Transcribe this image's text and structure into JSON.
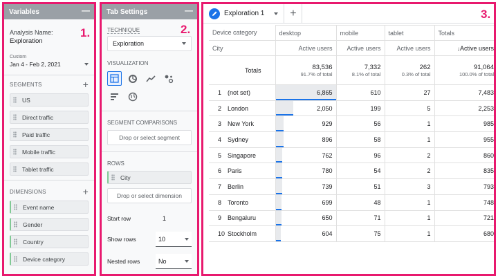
{
  "variables": {
    "title": "Variables",
    "analysis_name_label": "Analysis Name:",
    "analysis_name": "Exploration",
    "date_label": "Custom",
    "date_range": "Jan 4 - Feb 2, 2021",
    "segments_label": "SEGMENTS",
    "segments": [
      "US",
      "Direct traffic",
      "Paid traffic",
      "Mobile traffic",
      "Tablet traffic"
    ],
    "dimensions_label": "DIMENSIONS",
    "dimensions": [
      "Event name",
      "Gender",
      "Country",
      "Device category"
    ]
  },
  "tab_settings": {
    "title": "Tab Settings",
    "technique_label": "TECHNIQUE",
    "technique": "Exploration",
    "visualization_label": "VISUALIZATION",
    "segment_comparisons_label": "SEGMENT COMPARISONS",
    "drop_segment": "Drop or select segment",
    "rows_label": "ROWS",
    "row_dimension": "City",
    "drop_dimension": "Drop or select dimension",
    "start_row_label": "Start row",
    "start_row": "1",
    "show_rows_label": "Show rows",
    "show_rows": "10",
    "nested_rows_label": "Nested rows",
    "nested_rows": "No"
  },
  "callouts": {
    "one": "1.",
    "two": "2.",
    "three": "3."
  },
  "exploration": {
    "tab_name": "Exploration 1",
    "add_tab": "+",
    "col_header_dim": "Device category",
    "row_header_dim": "City",
    "columns": [
      "desktop",
      "mobile",
      "tablet",
      "Totals"
    ],
    "metrics": [
      "Active users",
      "Active users",
      "Active users",
      "Active users"
    ],
    "totals_label": "Totals",
    "totals": [
      {
        "value": "83,536",
        "pct": "91.7% of total"
      },
      {
        "value": "7,332",
        "pct": "8.1% of total"
      },
      {
        "value": "262",
        "pct": "0.3% of total"
      },
      {
        "value": "91,064",
        "pct": "100.0% of total"
      }
    ],
    "rows": [
      {
        "n": "1",
        "city": "(not set)",
        "vals": [
          "6,865",
          "610",
          "27",
          "7,483"
        ],
        "desktop": 6865
      },
      {
        "n": "2",
        "city": "London",
        "vals": [
          "2,050",
          "199",
          "5",
          "2,253"
        ],
        "desktop": 2050
      },
      {
        "n": "3",
        "city": "New York",
        "vals": [
          "929",
          "56",
          "1",
          "985"
        ],
        "desktop": 929
      },
      {
        "n": "4",
        "city": "Sydney",
        "vals": [
          "896",
          "58",
          "1",
          "955"
        ],
        "desktop": 896
      },
      {
        "n": "5",
        "city": "Singapore",
        "vals": [
          "762",
          "96",
          "2",
          "860"
        ],
        "desktop": 762
      },
      {
        "n": "6",
        "city": "Paris",
        "vals": [
          "780",
          "54",
          "2",
          "835"
        ],
        "desktop": 780
      },
      {
        "n": "7",
        "city": "Berlin",
        "vals": [
          "739",
          "51",
          "3",
          "793"
        ],
        "desktop": 739
      },
      {
        "n": "8",
        "city": "Toronto",
        "vals": [
          "699",
          "48",
          "1",
          "748"
        ],
        "desktop": 699
      },
      {
        "n": "9",
        "city": "Bengaluru",
        "vals": [
          "650",
          "71",
          "1",
          "721"
        ],
        "desktop": 650
      },
      {
        "n": "10",
        "city": "Stockholm",
        "vals": [
          "604",
          "75",
          "1",
          "680"
        ],
        "desktop": 604
      }
    ]
  }
}
